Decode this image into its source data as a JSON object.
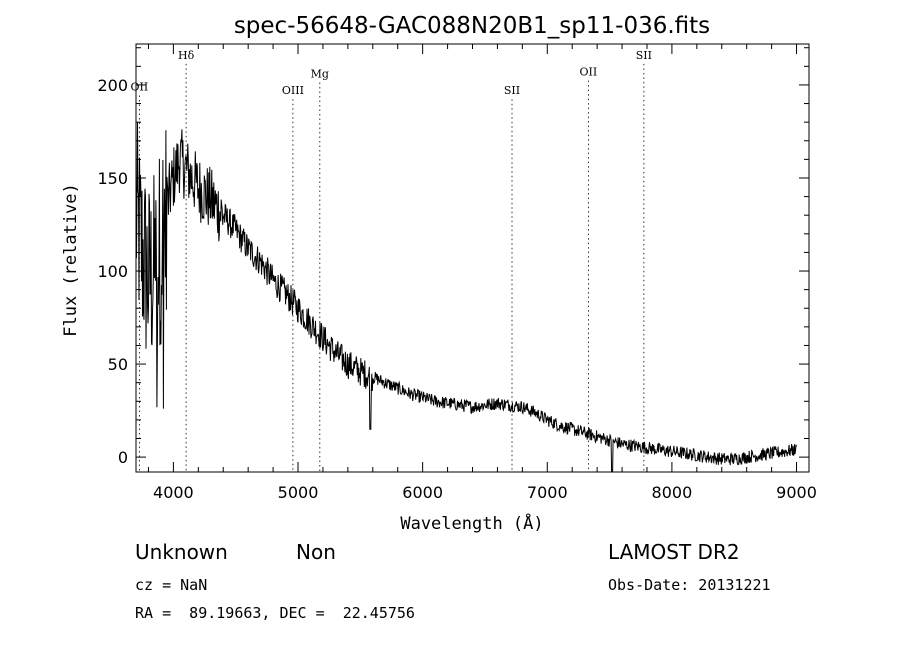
{
  "chart_data": {
    "type": "line",
    "title": "spec-56648-GAC088N20B1_sp11-036.fits",
    "xlabel": "Wavelength (Å)",
    "ylabel": "Flux (relative)",
    "xlim": [
      3700,
      9100
    ],
    "ylim": [
      -8,
      222
    ],
    "x_ticks": [
      4000,
      5000,
      6000,
      7000,
      8000,
      9000
    ],
    "y_ticks": [
      0,
      50,
      100,
      150,
      200
    ],
    "x_tick_labels": [
      "4000",
      "5000",
      "6000",
      "7000",
      "8000",
      "9000"
    ],
    "y_tick_labels": [
      "0",
      "50",
      "100",
      "150",
      "200"
    ],
    "grid": false,
    "series": [
      {
        "name": "flux",
        "x": [
          3700,
          3750,
          3800,
          3850,
          3900,
          3950,
          4000,
          4050,
          4100,
          4150,
          4200,
          4300,
          4400,
          4500,
          4600,
          4700,
          4800,
          4900,
          5000,
          5100,
          5200,
          5300,
          5400,
          5500,
          5600,
          5700,
          5800,
          5900,
          6000,
          6100,
          6200,
          6300,
          6400,
          6500,
          6600,
          6700,
          6800,
          6900,
          7000,
          7100,
          7200,
          7300,
          7400,
          7500,
          7600,
          7700,
          7800,
          7900,
          8000,
          8100,
          8200,
          8300,
          8400,
          8500,
          8600,
          8700,
          8800,
          8900,
          9000
        ],
        "y": [
          130,
          110,
          95,
          100,
          115,
          135,
          150,
          160,
          155,
          150,
          145,
          138,
          130,
          122,
          112,
          105,
          95,
          88,
          80,
          72,
          64,
          56,
          50,
          46,
          43,
          40,
          37,
          34,
          32,
          30,
          29,
          28,
          27,
          28,
          29,
          28,
          27,
          24,
          20,
          17,
          15,
          13,
          11,
          9,
          7,
          6,
          5,
          4,
          3,
          2,
          1,
          0,
          -1,
          -1,
          0,
          1,
          2,
          3,
          4
        ]
      }
    ],
    "emission_lines": [
      {
        "label": "OII",
        "wavelength": 3727,
        "label_y": 197
      },
      {
        "label": "Hδ",
        "wavelength": 4102,
        "label_y": 214
      },
      {
        "label": "OIII",
        "wavelength": 4959,
        "label_y": 195
      },
      {
        "label": "Mg",
        "wavelength": 5175,
        "label_y": 204
      },
      {
        "label": "SII",
        "wavelength": 6717,
        "label_y": 195
      },
      {
        "label": "OII",
        "wavelength": 7330,
        "label_y": 205
      },
      {
        "label": "SII",
        "wavelength": 7775,
        "label_y": 214
      }
    ]
  },
  "info": {
    "class": "Unknown",
    "subclass": "Non",
    "survey": "LAMOST DR2",
    "cz": "cz = NaN",
    "obs_date": "Obs-Date: 20131221",
    "coords": "RA =  89.19663, DEC =  22.45756"
  }
}
